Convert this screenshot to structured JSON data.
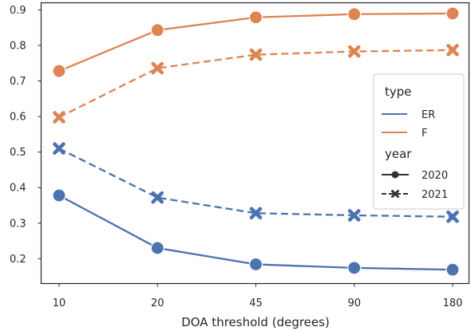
{
  "chart_data": {
    "type": "line",
    "xlabel": "DOA threshold (degrees)",
    "ylabel": "",
    "categories": [
      "10",
      "20",
      "45",
      "90",
      "180"
    ],
    "yticks": [
      0.2,
      0.3,
      0.4,
      0.5,
      0.6,
      0.7,
      0.8,
      0.9
    ],
    "ylim": [
      0.13,
      0.92
    ],
    "grid": false,
    "legend": {
      "placement": "right",
      "type_title": "type",
      "type_entries": [
        "ER",
        "F"
      ],
      "year_title": "year",
      "year_entries": [
        "2020",
        "2021"
      ]
    },
    "colors": {
      "ER": "#4c72b0",
      "F": "#dd8452",
      "marker_dark": "#333333"
    },
    "series": [
      {
        "type": "F",
        "year": "2020",
        "marker": "circle",
        "dash": "solid",
        "values": [
          0.728,
          0.843,
          0.879,
          0.888,
          0.89
        ]
      },
      {
        "type": "F",
        "year": "2021",
        "marker": "x",
        "dash": "dashed",
        "values": [
          0.598,
          0.736,
          0.774,
          0.783,
          0.787
        ]
      },
      {
        "type": "ER",
        "year": "2021",
        "marker": "x",
        "dash": "dashed",
        "values": [
          0.51,
          0.372,
          0.328,
          0.322,
          0.318
        ]
      },
      {
        "type": "ER",
        "year": "2020",
        "marker": "circle",
        "dash": "solid",
        "values": [
          0.378,
          0.23,
          0.184,
          0.174,
          0.169
        ]
      }
    ]
  }
}
